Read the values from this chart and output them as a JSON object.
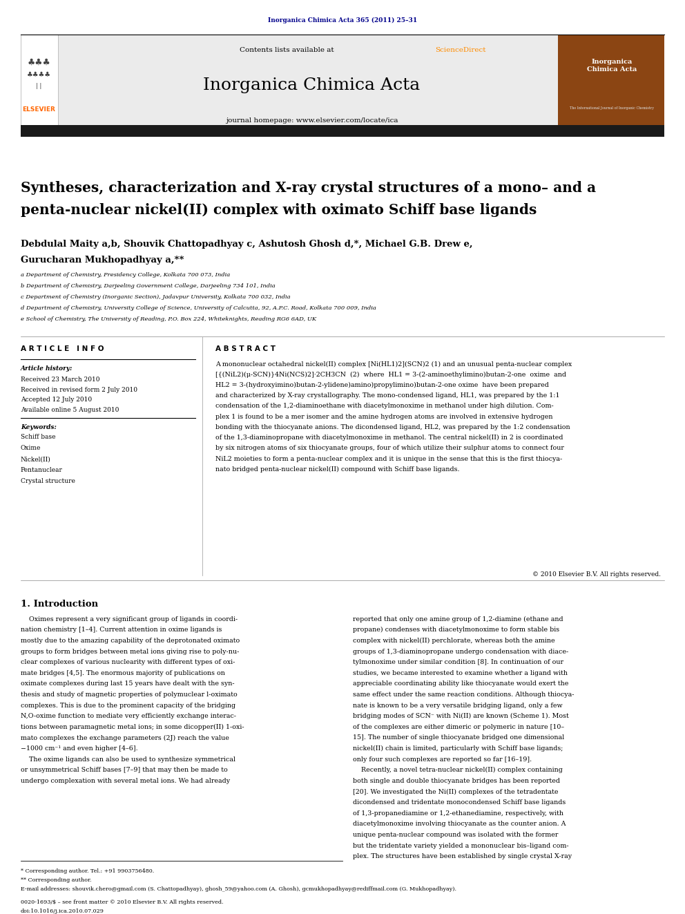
{
  "page_width": 9.92,
  "page_height": 13.23,
  "bg_color": "#ffffff",
  "top_journal_ref": "Inorganica Chimica Acta 365 (2011) 25–31",
  "journal_name": "Inorganica Chimica Acta",
  "contents_line": "Contents lists available at ScienceDirect",
  "journal_homepage": "journal homepage: www.elsevier.com/locate/ica",
  "title_line1": "Syntheses, characterization and X-ray crystal structures of a mono– and a",
  "title_line2": "penta-nuclear nickel(II) complex with oximato Schiff base ligands",
  "author_line1": "Debdulal Maity a,b, Shouvik Chattopadhyay c, Ashutosh Ghosh d,*, Michael G.B. Drew e,",
  "author_line2": "Gurucharan Mukhopadhyay a,**",
  "affil_a": "a Department of Chemistry, Presidency College, Kolkata 700 073, India",
  "affil_b": "b Department of Chemistry, Darjeeling Government College, Darjeeling 734 101, India",
  "affil_c": "c Department of Chemistry (Inorganic Section), Jadavpur University, Kolkata 700 032, India",
  "affil_d": "d Department of Chemistry, University College of Science, University of Calcutta, 92, A.P.C. Road, Kolkata 700 009, India",
  "affil_e": "e School of Chemistry, The University of Reading, P.O. Box 224, Whiteknights, Reading RG6 6AD, UK",
  "article_info_header": "A R T I C L E   I N F O",
  "abstract_header": "A B S T R A C T",
  "article_history_label": "Article history:",
  "received1": "Received 23 March 2010",
  "received_revised": "Received in revised form 2 July 2010",
  "accepted": "Accepted 12 July 2010",
  "available": "Available online 5 August 2010",
  "keywords_label": "Keywords:",
  "keyword1": "Schiff base",
  "keyword2": "Oxime",
  "keyword3": "Nickel(II)",
  "keyword4": "Pentanuclear",
  "keyword5": "Crystal structure",
  "abstract_text": "A mononuclear octahedral nickel(II) complex [Ni(HL1)2](SCN)2 (1) and an unusual penta-nuclear complex\n[{(NiL2)(μ-SCN)}4Ni(NCS)2]·2CH3CN  (2)  where  HL1 = 3-(2-aminoethylimino)butan-2-one  oxime  and\nHL2 = 3-(hydroxyimino)butan-2-ylidene)amino)propylimino)butan-2-one oxime  have been prepared\nand characterized by X-ray crystallography. The mono-condensed ligand, HL1, was prepared by the 1:1\ncondensation of the 1,2-diaminoethane with diacetylmonoxime in methanol under high dilution. Com-\nplex 1 is found to be a mer isomer and the amine hydrogen atoms are involved in extensive hydrogen\nbonding with the thiocyanate anions. The dicondensed ligand, HL2, was prepared by the 1:2 condensation\nof the 1,3-diaminopropane with diacetylmonoxime in methanol. The central nickel(II) in 2 is coordinated\nby six nitrogen atoms of six thiocyanate groups, four of which utilize their sulphur atoms to connect four\nNiL2 moieties to form a penta-nuclear complex and it is unique in the sense that this is the first thiocya-\nnato bridged penta-nuclear nickel(II) compound with Schiff base ligands.",
  "copyright": "© 2010 Elsevier B.V. All rights reserved.",
  "intro_header": "1. Introduction",
  "intro_col1_lines": [
    "    Oximes represent a very significant group of ligands in coordi-",
    "nation chemistry [1–4]. Current attention in oxime ligands is",
    "mostly due to the amazing capability of the deprotonated oximato",
    "groups to form bridges between metal ions giving rise to poly-nu-",
    "clear complexes of various nuclearity with different types of oxi-",
    "mate bridges [4,5]. The enormous majority of publications on",
    "oximate complexes during last 15 years have dealt with the syn-",
    "thesis and study of magnetic properties of polymuclear l-oximato",
    "complexes. This is due to the prominent capacity of the bridging",
    "N,O-oxime function to mediate very efficiently exchange interac-",
    "tions between paramagnetic metal ions; in some dicopper(II) 1-oxi-",
    "mato complexes the exchange parameters (2J) reach the value",
    "−1000 cm⁻¹ and even higher [4–6].",
    "    The oxime ligands can also be used to synthesize symmetrical",
    "or unsymmetrical Schiff bases [7–9] that may then be made to",
    "undergo complexation with several metal ions. We had already"
  ],
  "intro_col2_lines": [
    "reported that only one amine group of 1,2-diamine (ethane and",
    "propane) condenses with diacetylmonoxime to form stable bis",
    "complex with nickel(II) perchlorate, whereas both the amine",
    "groups of 1,3-diaminopropane undergo condensation with diace-",
    "tylmonoxime under similar condition [8]. In continuation of our",
    "studies, we became interested to examine whether a ligand with",
    "appreciable coordinating ability like thiocyanate would exert the",
    "same effect under the same reaction conditions. Although thiocya-",
    "nate is known to be a very versatile bridging ligand, only a few",
    "bridging modes of SCN⁻ with Ni(II) are known (Scheme 1). Most",
    "of the complexes are either dimeric or polymeric in nature [10–",
    "15]. The number of single thiocyanate bridged one dimensional",
    "nickel(II) chain is limited, particularly with Schiff base ligands;",
    "only four such complexes are reported so far [16–19].",
    "    Recently, a novel tetra-nuclear nickel(II) complex containing",
    "both single and double thiocyanate bridges has been reported",
    "[20]. We investigated the Ni(II) complexes of the tetradentate",
    "dicondensed and tridentate monocondensed Schiff base ligands",
    "of 1,3-propanediamine or 1,2-ethanediamine, respectively, with",
    "diacetylmonoxime involving thiocyanate as the counter anion. A",
    "unique penta-nuclear compound was isolated with the former",
    "but the tridentate variety yielded a mononuclear bis–ligand com-",
    "plex. The structures have been established by single crystal X-ray"
  ],
  "footer_line1": "* Corresponding author. Tel.: +91 9903756480.",
  "footer_line2": "** Corresponding author.",
  "footer_line3": "E-mail addresses: shouvik.chero@gmail.com (S. Chattopadhyay), ghosh_59@yahoo.com (A. Ghosh), gcmukhopadhyay@rediffmail.com (G. Mukhopadhyay).",
  "footer_issn": "0020-1693/$ – see front matter © 2010 Elsevier B.V. All rights reserved.",
  "footer_doi": "doi:10.1016/j.ica.2010.07.029",
  "elsevier_color": "#FF6600",
  "link_color": "#00008B",
  "sciencedirect_color": "#FF8C00",
  "header_bg": "#EBEBEB",
  "black_bar_color": "#1a1a1a"
}
